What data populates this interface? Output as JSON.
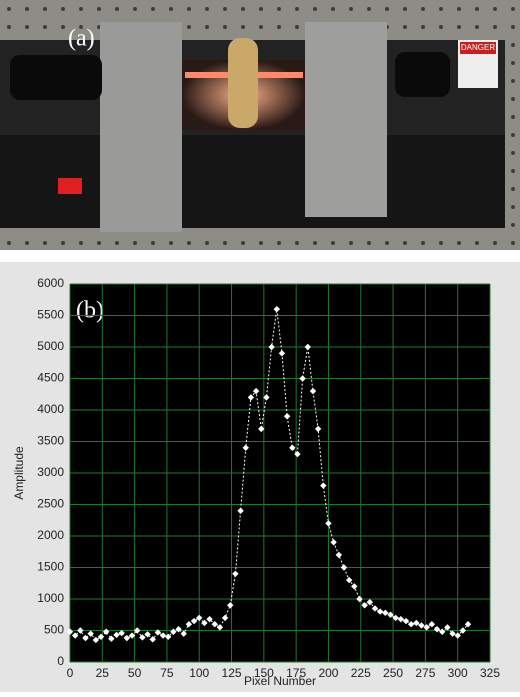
{
  "photo": {
    "label": "(a)",
    "sticker": "DANGER"
  },
  "chart_data": {
    "type": "line",
    "label": "(b)",
    "x_label": "Pixel Number",
    "y_label": "Amplitude",
    "x": [
      0,
      4,
      8,
      12,
      16,
      20,
      24,
      28,
      32,
      36,
      40,
      44,
      48,
      52,
      56,
      60,
      64,
      68,
      72,
      76,
      80,
      84,
      88,
      92,
      96,
      100,
      104,
      108,
      112,
      116,
      120,
      124,
      128,
      132,
      136,
      140,
      144,
      148,
      152,
      156,
      160,
      164,
      168,
      172,
      176,
      180,
      184,
      188,
      192,
      196,
      200,
      204,
      208,
      212,
      216,
      220,
      224,
      228,
      232,
      236,
      240,
      244,
      248,
      252,
      256,
      260,
      264,
      268,
      272,
      276,
      280,
      284,
      288,
      292,
      296,
      300,
      304,
      308
    ],
    "series": [
      {
        "color": "#ffffff",
        "values": [
          480,
          420,
          500,
          380,
          450,
          350,
          400,
          480,
          370,
          430,
          460,
          380,
          420,
          500,
          390,
          440,
          360,
          470,
          420,
          400,
          480,
          520,
          450,
          600,
          650,
          700,
          620,
          680,
          600,
          550,
          700,
          900,
          1400,
          2400,
          3400,
          4200,
          4300,
          3700,
          4200,
          5000,
          5600,
          4900,
          3900,
          3400,
          3300,
          4500,
          5000,
          4300,
          3700,
          2800,
          2200,
          1900,
          1700,
          1500,
          1300,
          1200,
          1000,
          900,
          950,
          850,
          800,
          780,
          750,
          700,
          680,
          650,
          600,
          620,
          580,
          550,
          600,
          520,
          480,
          550,
          450,
          420,
          500,
          600
        ]
      }
    ],
    "xlim": [
      0,
      325
    ],
    "xticks": [
      0,
      25,
      50,
      75,
      100,
      125,
      150,
      175,
      200,
      225,
      250,
      275,
      300,
      325
    ],
    "ylim": [
      0,
      6000
    ],
    "yticks": [
      0,
      500,
      1000,
      1500,
      2000,
      2500,
      3000,
      3500,
      4000,
      4500,
      5000,
      5500,
      6000
    ],
    "grid": true,
    "grid_color": "#1e7a2a",
    "background": "#000000"
  }
}
